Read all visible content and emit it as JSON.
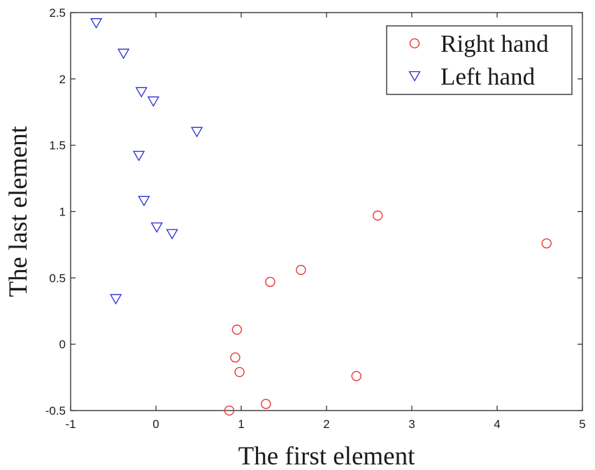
{
  "chart_data": {
    "type": "scatter",
    "title": "",
    "xlabel": "The first element",
    "ylabel": "The last element",
    "xlim": [
      -1,
      5
    ],
    "ylim": [
      -0.5,
      2.5
    ],
    "x_ticks": [
      -1,
      0,
      1,
      2,
      3,
      4,
      5
    ],
    "y_ticks": [
      -0.5,
      0,
      0.5,
      1,
      1.5,
      2,
      2.5
    ],
    "x_tick_labels": [
      "-1",
      "0",
      "1",
      "2",
      "3",
      "4",
      "5"
    ],
    "y_tick_labels": [
      "-0.5",
      "0",
      "0.5",
      "1",
      "1.5",
      "2",
      "2.5"
    ],
    "grid": false,
    "legend_position": "top-right",
    "series": [
      {
        "name": "Right hand",
        "marker": "circle",
        "color": "#e8282b",
        "points": [
          {
            "x": 2.6,
            "y": 0.97
          },
          {
            "x": 4.58,
            "y": 0.76
          },
          {
            "x": 1.7,
            "y": 0.56
          },
          {
            "x": 1.34,
            "y": 0.47
          },
          {
            "x": 0.95,
            "y": 0.11
          },
          {
            "x": 0.93,
            "y": -0.1
          },
          {
            "x": 0.98,
            "y": -0.21
          },
          {
            "x": 2.35,
            "y": -0.24
          },
          {
            "x": 1.29,
            "y": -0.45
          },
          {
            "x": 0.86,
            "y": -0.5
          }
        ]
      },
      {
        "name": "Left hand",
        "marker": "triangle-down",
        "color": "#2b2bd8",
        "points": [
          {
            "x": -0.7,
            "y": 2.42
          },
          {
            "x": -0.38,
            "y": 2.19
          },
          {
            "x": -0.17,
            "y": 1.9
          },
          {
            "x": -0.03,
            "y": 1.83
          },
          {
            "x": 0.48,
            "y": 1.6
          },
          {
            "x": -0.2,
            "y": 1.42
          },
          {
            "x": -0.14,
            "y": 1.08
          },
          {
            "x": 0.01,
            "y": 0.88
          },
          {
            "x": 0.19,
            "y": 0.83
          },
          {
            "x": -0.47,
            "y": 0.34
          }
        ]
      }
    ]
  }
}
